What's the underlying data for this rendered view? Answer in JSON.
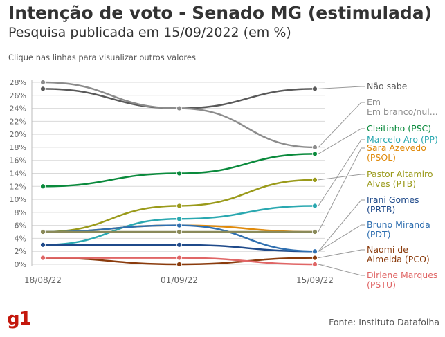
{
  "header": {
    "title": "Intenção de voto - Senado MG (estimulada)",
    "subtitle": "Pesquisa publicada em 15/09/2022 (em %)",
    "hint": "Clique nas linhas para visualizar outros valores"
  },
  "footer": {
    "logo": "g1",
    "source": "Fonte: Instituto Datafolha"
  },
  "colors": {
    "logo": "#c4170c",
    "grid": "#d9d9d9"
  },
  "chart_data": {
    "type": "line",
    "categories": [
      "18/08/22",
      "01/09/22",
      "15/09/22"
    ],
    "ylim": [
      0,
      28
    ],
    "yticks": [
      "0%",
      "2%",
      "4%",
      "6%",
      "8%",
      "10%",
      "12%",
      "14%",
      "16%",
      "18%",
      "20%",
      "22%",
      "24%",
      "26%",
      "28%"
    ],
    "grid": true,
    "smooth": true,
    "series": [
      {
        "name": "Não sabe",
        "values": [
          27,
          24,
          27
        ],
        "color": "#595959",
        "label_lines": [
          "Não sabe"
        ]
      },
      {
        "name": "Em branco/nulo",
        "values": [
          28,
          24,
          18
        ],
        "color": "#8c8c8c",
        "label_lines": [
          "Em",
          "Em branco/nul..."
        ]
      },
      {
        "name": "Cleitinho (PSC)",
        "values": [
          12,
          14,
          17
        ],
        "color": "#0a8a3c",
        "label_lines": [
          "Cleitinho (PSC)"
        ]
      },
      {
        "name": "Marcelo Aro (PP)",
        "values": [
          3,
          7,
          9
        ],
        "color": "#2aa8b0",
        "label_lines": [
          "Marcelo Aro (PP)"
        ]
      },
      {
        "name": "Sara Azevedo (PSOL)",
        "values": [
          5,
          6,
          5
        ],
        "color": "#e08a0b",
        "label_lines": [
          "Sara Azevedo",
          "(PSOL)"
        ]
      },
      {
        "name": "Pastor Altamiro Alves (PTB)",
        "values": [
          5,
          9,
          13
        ],
        "color": "#9a9a1a",
        "label_lines": [
          "Pastor Altamiro",
          "Alves (PTB)"
        ]
      },
      {
        "name": "Irani Gomes (PRTB)",
        "values": [
          3,
          3,
          2
        ],
        "color": "#1f4a8a",
        "label_lines": [
          "Irani Gomes",
          "(PRTB)"
        ]
      },
      {
        "name": "Bruno Miranda (PDT)",
        "values": [
          5,
          6,
          2
        ],
        "color": "#2f6fb0",
        "label_lines": [
          "Bruno Miranda",
          "(PDT)"
        ]
      },
      {
        "name": "Naomi de Almeida (PCO)",
        "values": [
          1,
          0,
          1
        ],
        "color": "#8a3b0c",
        "label_lines": [
          "Naomi de",
          "Almeida (PCO)"
        ]
      },
      {
        "name": "Dirlene Marques (PSTU)",
        "values": [
          1,
          1,
          0
        ],
        "color": "#e06666",
        "label_lines": [
          "Dirlene Marques",
          "(PSTU)"
        ]
      },
      {
        "name": "",
        "values": [
          5,
          5,
          5
        ],
        "color": "#8a8a5a",
        "label_lines": []
      }
    ]
  }
}
